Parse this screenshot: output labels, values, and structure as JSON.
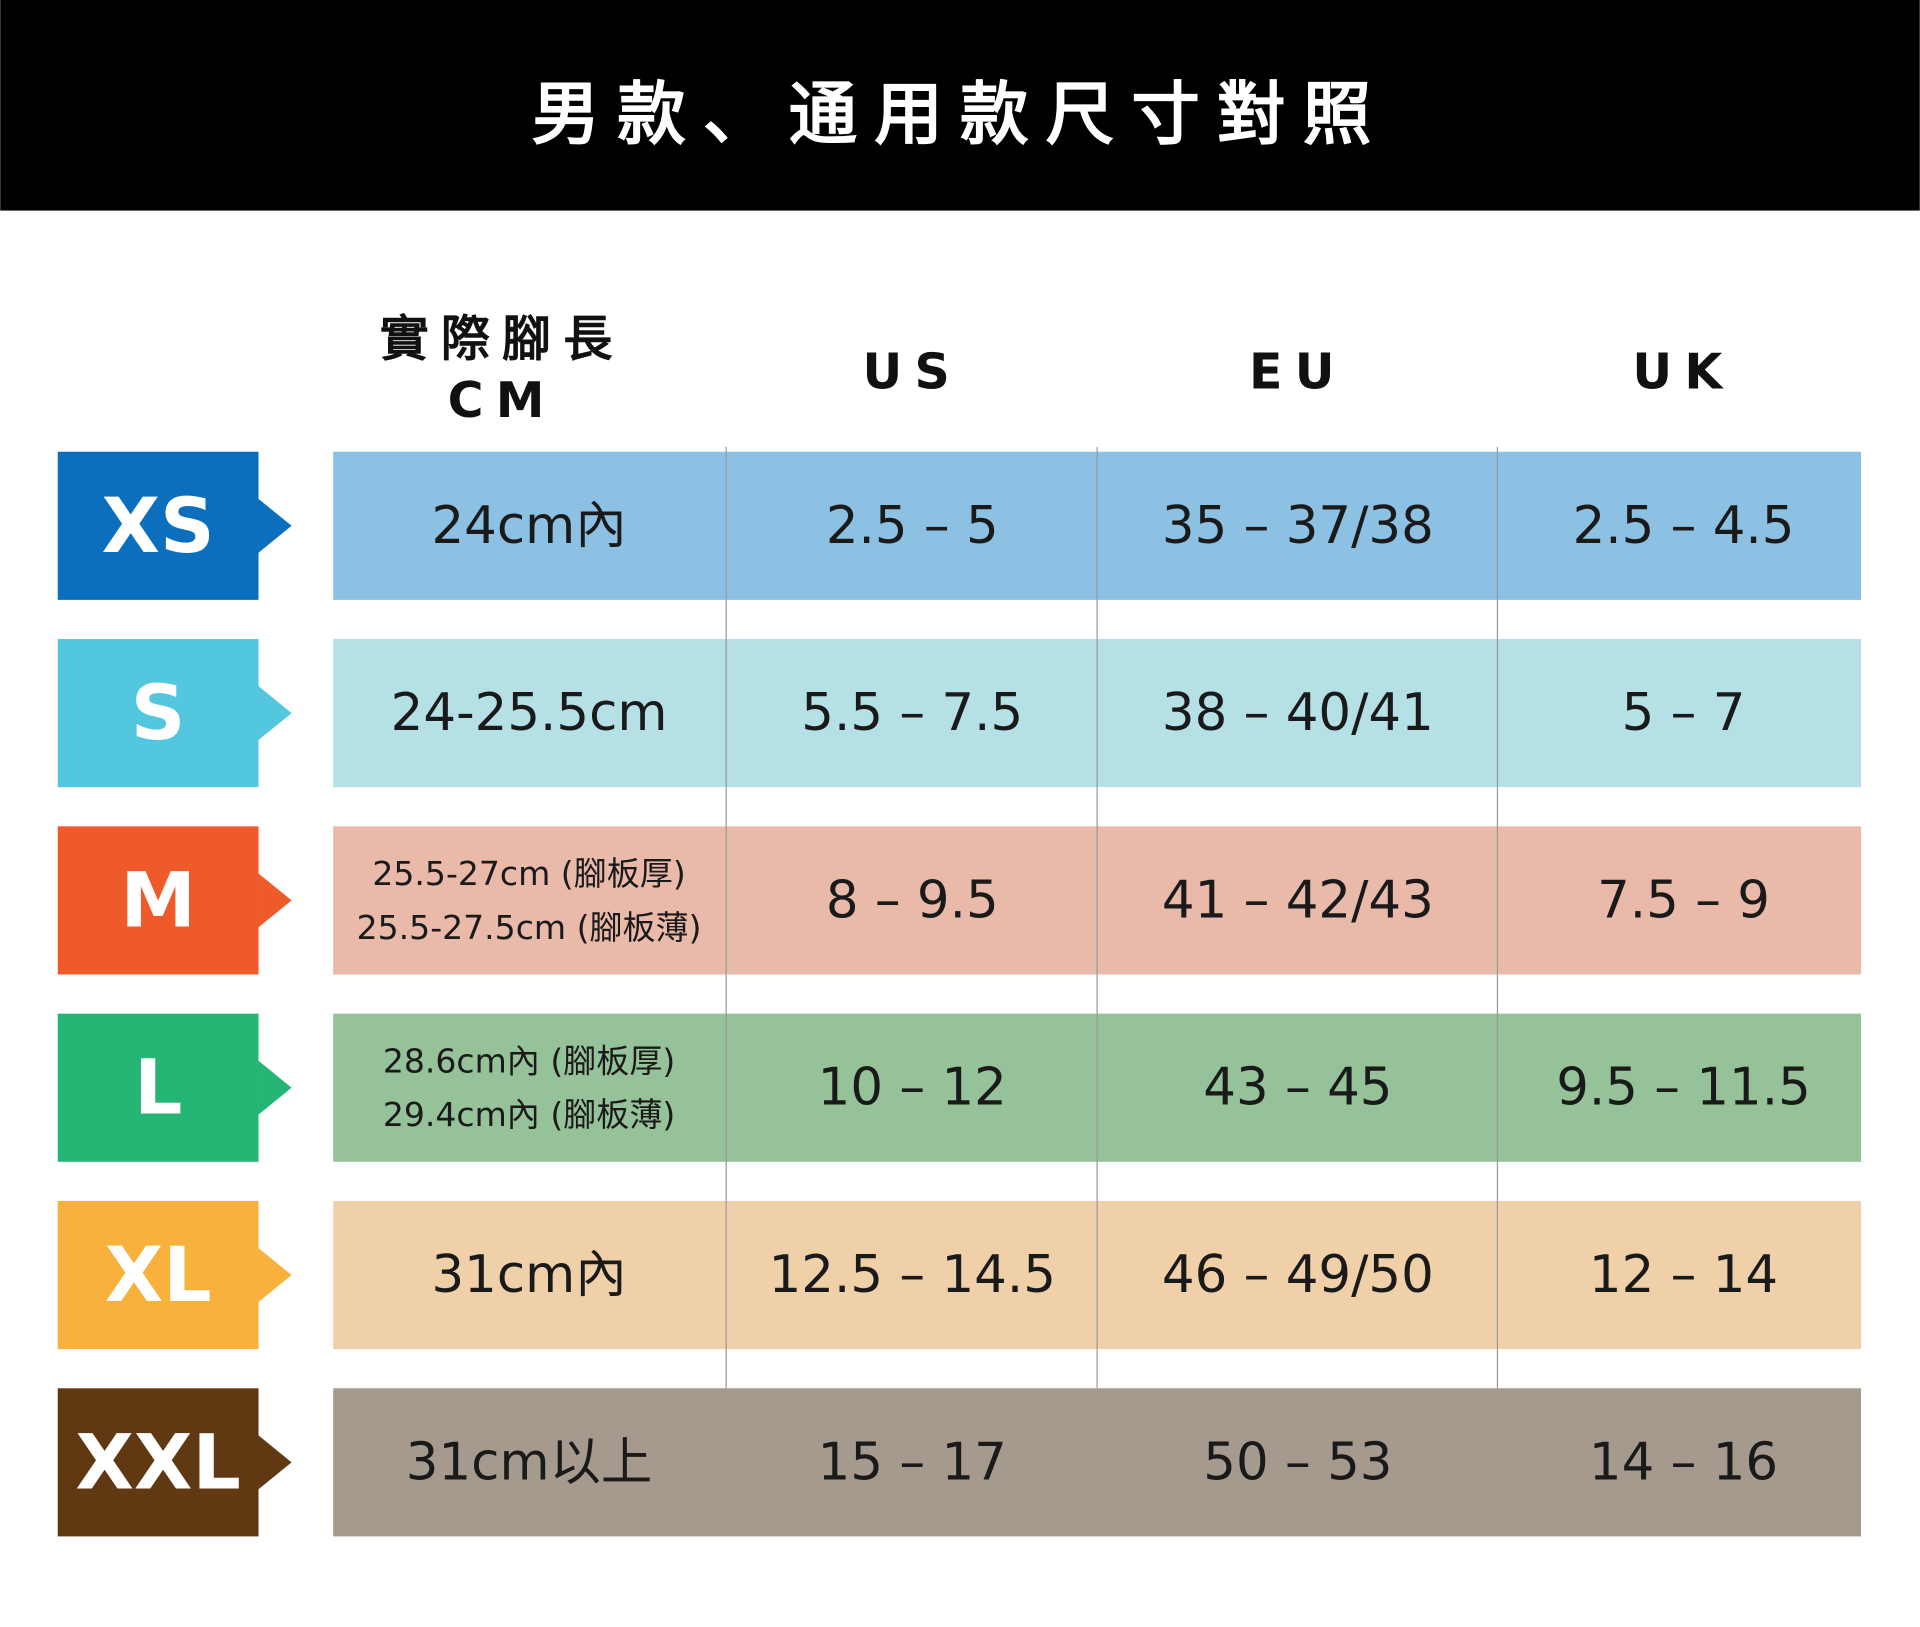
{
  "header": {
    "title": "男款、通用款尺寸對照"
  },
  "table": {
    "columns": [
      [
        "實際腳長",
        "CM"
      ],
      [
        "US"
      ],
      [
        "EU"
      ],
      [
        "UK"
      ]
    ],
    "rows": [
      {
        "size": "XS",
        "label_color": "#0b6fbe",
        "row_color": "#8cc1e3",
        "cells": [
          [
            "24cm內"
          ],
          [
            "2.5  – 5"
          ],
          [
            "35 – 37/38"
          ],
          [
            "2.5 – 4.5"
          ]
        ]
      },
      {
        "size": "S",
        "label_color": "#52c7dd",
        "row_color": "#b5e0e6",
        "cells": [
          [
            "24-25.5cm"
          ],
          [
            "5.5 – 7.5"
          ],
          [
            "38 – 40/41"
          ],
          [
            "5 – 7"
          ]
        ]
      },
      {
        "size": "M",
        "label_color": "#ef5a2a",
        "row_color": "#e9b9aa",
        "cells": [
          [
            "25.5-27cm (腳板厚)",
            "25.5-27.5cm (腳板薄)"
          ],
          [
            "8 – 9.5"
          ],
          [
            "41 – 42/43"
          ],
          [
            "7.5 – 9"
          ]
        ]
      },
      {
        "size": "L",
        "label_color": "#25b574",
        "row_color": "#95c298",
        "cells": [
          [
            "28.6cm內 (腳板厚)",
            "29.4cm內 (腳板薄)"
          ],
          [
            "10 – 12"
          ],
          [
            "43 – 45"
          ],
          [
            "9.5 – 11.5"
          ]
        ]
      },
      {
        "size": "XL",
        "label_color": "#f9b13d",
        "row_color": "#f0d0a9",
        "cells": [
          [
            "31cm內"
          ],
          [
            "12.5 – 14.5"
          ],
          [
            "46 – 49/50"
          ],
          [
            "12 – 14"
          ]
        ]
      },
      {
        "size": "XXL",
        "label_color": "#603913",
        "row_color": "#a69a8f",
        "cells": [
          [
            "31cm以上"
          ],
          [
            "15 – 17"
          ],
          [
            "50 – 53"
          ],
          [
            "14 – 16"
          ]
        ]
      }
    ]
  }
}
